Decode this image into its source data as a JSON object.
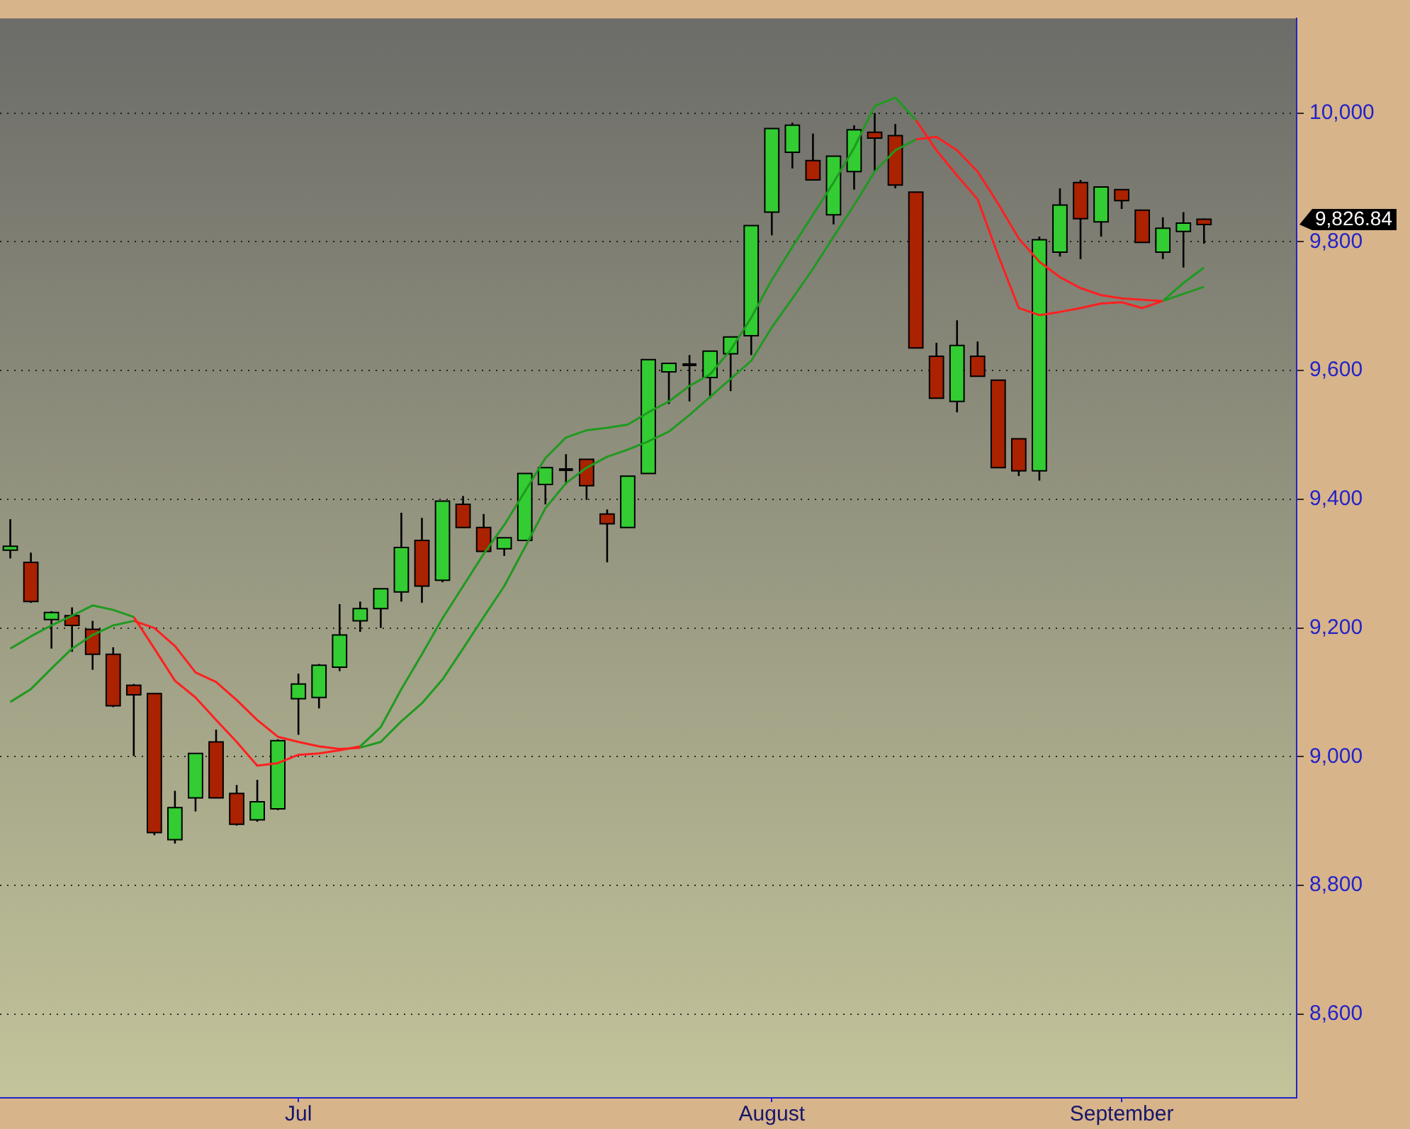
{
  "chart_data": {
    "type": "candlestick",
    "categories": [
      null,
      null,
      null,
      null,
      null,
      null,
      null,
      null,
      null,
      null,
      null,
      null,
      null,
      null,
      "Jul",
      null,
      null,
      null,
      null,
      null,
      null,
      null,
      null,
      null,
      null,
      null,
      null,
      null,
      null,
      null,
      null,
      null,
      null,
      null,
      null,
      null,
      null,
      "August",
      null,
      null,
      null,
      null,
      null,
      null,
      null,
      null,
      null,
      null,
      null,
      null,
      null,
      null,
      null,
      null,
      "September",
      null,
      null,
      null,
      null
    ],
    "ohlc": [
      [
        9321,
        9369,
        9308,
        9327
      ],
      [
        9302,
        9317,
        9239,
        9241
      ],
      [
        9213,
        9226,
        9168,
        9224
      ],
      [
        9219,
        9232,
        9163,
        9204
      ],
      [
        9198,
        9211,
        9135,
        9159
      ],
      [
        9159,
        9170,
        9077,
        9079
      ],
      [
        9111,
        9113,
        9001,
        9096
      ],
      [
        9098,
        9098,
        8878,
        8882
      ],
      [
        8871,
        8947,
        8865,
        8921
      ],
      [
        8936,
        9005,
        8915,
        9005
      ],
      [
        9023,
        9042,
        8936,
        8936
      ],
      [
        8943,
        8956,
        8893,
        8895
      ],
      [
        8902,
        8964,
        8899,
        8930
      ],
      [
        8919,
        9027,
        8917,
        9025
      ],
      [
        9090,
        9129,
        9034,
        9113
      ],
      [
        9092,
        9144,
        9075,
        9142
      ],
      [
        9139,
        9237,
        9133,
        9189
      ],
      [
        9211,
        9241,
        9194,
        9230
      ],
      [
        9230,
        9261,
        9200,
        9261
      ],
      [
        9256,
        9379,
        9241,
        9325
      ],
      [
        9336,
        9371,
        9239,
        9265
      ],
      [
        9274,
        9397,
        9271,
        9397
      ],
      [
        9392,
        9405,
        9356,
        9356
      ],
      [
        9356,
        9377,
        9319,
        9319
      ],
      [
        9323,
        9340,
        9312,
        9340
      ],
      [
        9336,
        9440,
        9336,
        9440
      ],
      [
        9423,
        9449,
        9392,
        9449
      ],
      [
        9446,
        9470,
        9423,
        9446
      ],
      [
        9462,
        9462,
        9399,
        9421
      ],
      [
        9377,
        9384,
        9302,
        9362
      ],
      [
        9356,
        9436,
        9356,
        9436
      ],
      [
        9440,
        9617,
        9440,
        9617
      ],
      [
        9598,
        9611,
        9548,
        9611
      ],
      [
        9609,
        9624,
        9552,
        9609
      ],
      [
        9589,
        9630,
        9557,
        9630
      ],
      [
        9626,
        9652,
        9568,
        9652
      ],
      [
        9654,
        9825,
        9624,
        9825
      ],
      [
        9846,
        9976,
        9810,
        9976
      ],
      [
        9939,
        9985,
        9914,
        9981
      ],
      [
        9926,
        9968,
        9896,
        9896
      ],
      [
        9842,
        9933,
        9827,
        9933
      ],
      [
        9909,
        9981,
        9881,
        9974
      ],
      [
        9970,
        10000,
        9909,
        9961
      ],
      [
        9965,
        9983,
        9883,
        9888
      ],
      [
        9877,
        9877,
        9635,
        9635
      ],
      [
        9622,
        9643,
        9557,
        9557
      ],
      [
        9552,
        9678,
        9535,
        9639
      ],
      [
        9622,
        9645,
        9591,
        9591
      ],
      [
        9585,
        9585,
        9449,
        9449
      ],
      [
        9494,
        9494,
        9436,
        9444
      ],
      [
        9444,
        9808,
        9429,
        9803
      ],
      [
        9784,
        9883,
        9777,
        9857
      ],
      [
        9892,
        9896,
        9773,
        9836
      ],
      [
        9831,
        9885,
        9808,
        9885
      ],
      [
        9881,
        9881,
        9851,
        9864
      ],
      [
        9849,
        9849,
        9799,
        9799
      ],
      [
        9784,
        9838,
        9773,
        9821
      ],
      [
        9816,
        9846,
        9760,
        9829
      ],
      [
        9835,
        9836,
        9797,
        9826.84
      ]
    ],
    "colors": [
      "#33cc33",
      "#aa2200",
      "#33cc33",
      "#aa2200",
      "#aa2200",
      "#aa2200",
      "#aa2200",
      "#aa2200",
      "#33cc33",
      "#33cc33",
      "#aa2200",
      "#aa2200",
      "#33cc33",
      "#33cc33",
      "#33cc33",
      "#33cc33",
      "#33cc33",
      "#33cc33",
      "#33cc33",
      "#33cc33",
      "#aa2200",
      "#33cc33",
      "#aa2200",
      "#aa2200",
      "#33cc33",
      "#33cc33",
      "#33cc33",
      "#000000",
      "#aa2200",
      "#aa2200",
      "#33cc33",
      "#33cc33",
      "#33cc33",
      "#000000",
      "#33cc33",
      "#33cc33",
      "#33cc33",
      "#33cc33",
      "#33cc33",
      "#aa2200",
      "#33cc33",
      "#33cc33",
      "#aa2200",
      "#aa2200",
      "#aa2200",
      "#aa2200",
      "#33cc33",
      "#aa2200",
      "#aa2200",
      "#aa2200",
      "#33cc33",
      "#33cc33",
      "#aa2200",
      "#33cc33",
      "#aa2200",
      "#aa2200",
      "#33cc33",
      "#33cc33",
      "#aa2200"
    ],
    "series": [
      {
        "type": "line",
        "color": "#1f9a1f",
        "values": [
          9168,
          9187,
          9204,
          9219,
          9235,
          9228,
          9217,
          null,
          null,
          null,
          null,
          null,
          null,
          null,
          null,
          null,
          null,
          9016,
          9046,
          9105,
          9159,
          9215,
          9265,
          9315,
          9360,
          9412,
          9464,
          9496,
          9507,
          9511,
          9516,
          9535,
          9552,
          9576,
          9594,
          9632,
          9682,
          9741,
          9792,
          9842,
          9892,
          9946,
          10011,
          10024,
          9989,
          null,
          null,
          null,
          null,
          null,
          null,
          null,
          null,
          null,
          null,
          null,
          9708,
          9736,
          9760
        ]
      },
      {
        "type": "line",
        "color": "#ff2020",
        "values": [
          null,
          null,
          null,
          null,
          null,
          null,
          9217,
          9168,
          9118,
          9092,
          9057,
          9023,
          8986,
          8990,
          9003,
          9005,
          9010,
          9016,
          null,
          null,
          null,
          null,
          null,
          null,
          null,
          null,
          null,
          null,
          null,
          null,
          null,
          null,
          null,
          null,
          null,
          null,
          null,
          null,
          null,
          null,
          null,
          null,
          null,
          null,
          9989,
          9942,
          9903,
          9866,
          9779,
          9697,
          9686,
          9691,
          9697,
          9704,
          9706,
          9697,
          9708,
          null,
          null
        ]
      },
      {
        "type": "line",
        "color": "#1f9a1f",
        "values": [
          9085,
          9105,
          9137,
          9168,
          9189,
          9204,
          9211,
          null,
          null,
          null,
          null,
          null,
          null,
          null,
          null,
          null,
          null,
          9014,
          9023,
          9055,
          9083,
          9120,
          9168,
          9217,
          9265,
          9325,
          9386,
          9425,
          9449,
          9466,
          9477,
          9490,
          9505,
          9531,
          9559,
          9587,
          9615,
          9667,
          9712,
          9758,
          9808,
          9857,
          9909,
          9942,
          9959,
          null,
          null,
          null,
          null,
          null,
          null,
          null,
          null,
          null,
          null,
          null,
          9708,
          9719,
          9730
        ]
      },
      {
        "type": "line",
        "color": "#ff2020",
        "values": [
          null,
          null,
          null,
          null,
          null,
          null,
          9211,
          9200,
          9172,
          9131,
          9116,
          9088,
          9057,
          9031,
          9023,
          9016,
          9012,
          9014,
          null,
          null,
          null,
          null,
          null,
          null,
          null,
          null,
          null,
          null,
          null,
          null,
          null,
          null,
          null,
          null,
          null,
          null,
          null,
          null,
          null,
          null,
          null,
          null,
          null,
          null,
          9959,
          9963,
          9942,
          9909,
          9859,
          9805,
          9769,
          9745,
          9728,
          9717,
          9712,
          9710,
          9708,
          null,
          null
        ]
      }
    ],
    "ylim": [
      8470,
      10147
    ],
    "yticks": [
      {
        "value": 8600,
        "label": "8,600"
      },
      {
        "value": 8800,
        "label": "8,800"
      },
      {
        "value": 9000,
        "label": "9,000"
      },
      {
        "value": 9200,
        "label": "9,200"
      },
      {
        "value": 9400,
        "label": "9,400"
      },
      {
        "value": 9600,
        "label": "9,600"
      },
      {
        "value": 9800,
        "label": "9,800"
      },
      {
        "value": 10000,
        "label": "10,000"
      }
    ],
    "grid": "y",
    "annotations": [
      "9,826.84"
    ]
  }
}
